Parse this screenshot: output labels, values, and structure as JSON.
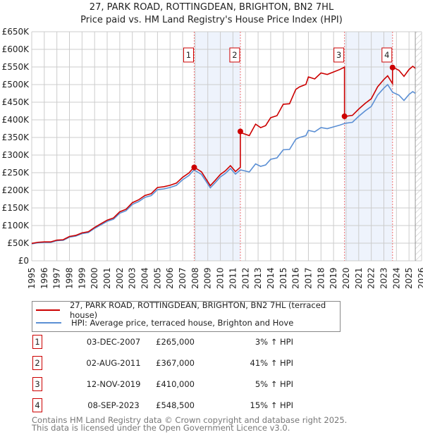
{
  "chart_data": {
    "type": "line",
    "title": "27, PARK ROAD, ROTTINGDEAN, BRIGHTON, BN2 7HL",
    "subtitle": "Price paid vs. HM Land Registry's House Price Index (HPI)",
    "xlim": [
      1995,
      2026
    ],
    "ylim": [
      0,
      650000
    ],
    "y_ticks": [
      "£0",
      "£50K",
      "£100K",
      "£150K",
      "£200K",
      "£250K",
      "£300K",
      "£350K",
      "£400K",
      "£450K",
      "£500K",
      "£550K",
      "£600K",
      "£650K"
    ],
    "x_ticks": [
      "1995",
      "1996",
      "1997",
      "1998",
      "1999",
      "2000",
      "2001",
      "2002",
      "2003",
      "2004",
      "2005",
      "2006",
      "2007",
      "2008",
      "2009",
      "2010",
      "2011",
      "2012",
      "2013",
      "2014",
      "2015",
      "2016",
      "2017",
      "2018",
      "2019",
      "2020",
      "2021",
      "2022",
      "2023",
      "2024",
      "2025",
      "2026"
    ],
    "grid": true,
    "hpi_series": {
      "name": "HPI: Average price, terraced house, Brighton and Hove",
      "color": "#5b8fd4",
      "x": [
        1995,
        1995.5,
        1996,
        1996.5,
        1997,
        1997.5,
        1998,
        1998.5,
        1999,
        1999.5,
        2000,
        2000.5,
        2001,
        2001.5,
        2002,
        2002.5,
        2003,
        2003.5,
        2004,
        2004.5,
        2005,
        2005.5,
        2006,
        2006.5,
        2007,
        2007.5,
        2007.9,
        2008.5,
        2009.2,
        2009.6,
        2010,
        2010.4,
        2010.8,
        2011.2,
        2011.6,
        2012.3,
        2012.8,
        2013.2,
        2013.6,
        2014,
        2014.5,
        2015,
        2015.5,
        2016,
        2016.3,
        2016.8,
        2017,
        2017.5,
        2018,
        2018.5,
        2019,
        2019.5,
        2019.9,
        2020.5,
        2021,
        2021.5,
        2022,
        2022.5,
        2023,
        2023.3,
        2023.7,
        2024.2,
        2024.6,
        2025,
        2025.3,
        2025.5
      ],
      "y": [
        48000,
        51000,
        52000,
        52000,
        57000,
        58000,
        67000,
        70000,
        77000,
        80000,
        92000,
        102000,
        112000,
        118000,
        135000,
        142000,
        160000,
        168000,
        180000,
        185000,
        202000,
        204000,
        208000,
        214000,
        230000,
        242000,
        258000,
        245000,
        207000,
        222000,
        238000,
        248000,
        262000,
        246000,
        258000,
        252000,
        275000,
        268000,
        272000,
        288000,
        292000,
        315000,
        316000,
        345000,
        350000,
        355000,
        370000,
        366000,
        378000,
        375000,
        380000,
        385000,
        390000,
        393000,
        410000,
        425000,
        438000,
        470000,
        490000,
        500000,
        478000,
        470000,
        455000,
        472000,
        480000,
        475000
      ]
    },
    "property_series": {
      "name": "27, PARK ROAD, ROTTINGDEAN, BRIGHTON, BN2 7HL (terraced house)",
      "color": "#cc0000"
    },
    "sales": [
      {
        "num": "1",
        "x": 2007.92,
        "date": "03-DEC-2007",
        "price": 265000,
        "price_label": "£265,000",
        "pct": "3% ↑ HPI",
        "ratio": 1.03
      },
      {
        "num": "2",
        "x": 2011.59,
        "date": "02-AUG-2011",
        "price": 367000,
        "price_label": "£367,000",
        "pct": "41% ↑ HPI",
        "ratio": 1.41
      },
      {
        "num": "3",
        "x": 2019.87,
        "date": "12-NOV-2019",
        "price": 410000,
        "price_label": "£410,000",
        "pct": "5% ↑ HPI",
        "ratio": 1.05
      },
      {
        "num": "4",
        "x": 2023.69,
        "date": "08-SEP-2023",
        "price": 548500,
        "price_label": "£548,500",
        "pct": "15% ↑ HPI",
        "ratio": 1.15
      }
    ],
    "shaded_ranges": [
      [
        2007.92,
        2011.59
      ],
      [
        2019.87,
        2023.69
      ]
    ],
    "forecast_hatch_from": 2025.5,
    "legend": [
      "27, PARK ROAD, ROTTINGDEAN, BRIGHTON, BN2 7HL (terraced house)",
      "HPI: Average price, terraced house, Brighton and Hove"
    ],
    "legend_placement": "below"
  },
  "footer": [
    "Contains HM Land Registry data © Crown copyright and database right 2025.",
    "This data is licensed under the Open Government Licence v3.0."
  ]
}
